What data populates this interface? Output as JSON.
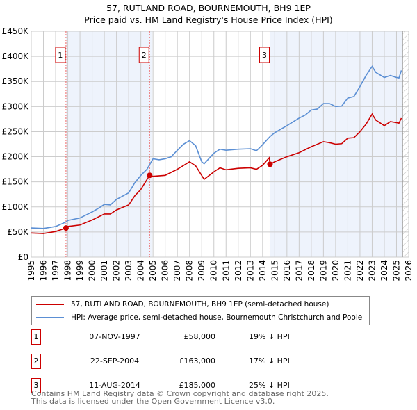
{
  "title": "57, RUTLAND ROAD, BOURNEMOUTH, BH9 1EP",
  "subtitle": "Price paid vs. HM Land Registry's House Price Index (HPI)",
  "chart_data": {
    "type": "line",
    "xlim": [
      1995,
      2026
    ],
    "ylim": [
      0,
      450000
    ],
    "yticks": [
      {
        "v": 0,
        "label": "£0"
      },
      {
        "v": 50000,
        "label": "£50K"
      },
      {
        "v": 100000,
        "label": "£100K"
      },
      {
        "v": 150000,
        "label": "£150K"
      },
      {
        "v": 200000,
        "label": "£200K"
      },
      {
        "v": 250000,
        "label": "£250K"
      },
      {
        "v": 300000,
        "label": "£300K"
      },
      {
        "v": 350000,
        "label": "£350K"
      },
      {
        "v": 400000,
        "label": "£400K"
      },
      {
        "v": 450000,
        "label": "£450K"
      }
    ],
    "xticks": [
      "1995",
      "1996",
      "1997",
      "1998",
      "1999",
      "2000",
      "2001",
      "2002",
      "2003",
      "2004",
      "2005",
      "2006",
      "2007",
      "2008",
      "2009",
      "2010",
      "2011",
      "2012",
      "2013",
      "2014",
      "2015",
      "2016",
      "2017",
      "2018",
      "2019",
      "2020",
      "2021",
      "2022",
      "2023",
      "2024",
      "2025",
      "2026"
    ],
    "grid": true,
    "shaded_ranges": [
      [
        1997.85,
        2004.95
      ],
      [
        2014.6,
        2025.5
      ]
    ],
    "forecast_hatch_from": 2025.5,
    "series": [
      {
        "name": "57, RUTLAND ROAD, BOURNEMOUTH, BH9 1EP (semi-detached house)",
        "color": "#cc0000",
        "x": [
          1995,
          1996,
          1997,
          1997.85,
          1998,
          1999,
          2000,
          2001,
          2001.5,
          2002,
          2003,
          2003.5,
          2004,
          2004.72,
          2005,
          2006,
          2007,
          2008,
          2008.5,
          2009.2,
          2010,
          2010.5,
          2011,
          2012,
          2013,
          2013.5,
          2014,
          2014.55,
          2014.62,
          2015,
          2016,
          2017,
          2018,
          2019,
          2019.5,
          2020,
          2020.5,
          2021,
          2021.5,
          2022,
          2022.5,
          2023,
          2023.3,
          2024,
          2024.5,
          2025,
          2025.2,
          2025.4
        ],
        "y": [
          48000,
          47000,
          51000,
          58000,
          61000,
          64000,
          74000,
          86000,
          86000,
          94000,
          104000,
          122000,
          135000,
          163000,
          161000,
          163000,
          175000,
          190000,
          182000,
          155000,
          170000,
          178000,
          174000,
          177000,
          178000,
          175000,
          183000,
          198000,
          185000,
          190000,
          200000,
          208000,
          220000,
          230000,
          228000,
          225000,
          226000,
          237000,
          238000,
          250000,
          265000,
          285000,
          273000,
          262000,
          270000,
          268000,
          267000,
          277000
        ]
      },
      {
        "name": "HPI: Average price, semi-detached house, Bournemouth Christchurch and Poole",
        "color": "#5b8fd4",
        "x": [
          1995,
          1996,
          1997,
          1997.85,
          1998,
          1999,
          2000,
          2000.5,
          2001,
          2001.5,
          2002,
          2003,
          2003.5,
          2004,
          2004.5,
          2005,
          2005.5,
          2006,
          2006.5,
          2007,
          2007.5,
          2008,
          2008.5,
          2009,
          2009.2,
          2010,
          2010.5,
          2011,
          2012,
          2013,
          2013.5,
          2014,
          2014.6,
          2015,
          2016,
          2017,
          2017.5,
          2018,
          2018.5,
          2019,
          2019.5,
          2020,
          2020.5,
          2021,
          2021.5,
          2022,
          2022.5,
          2023,
          2023.3,
          2024,
          2024.5,
          2025,
          2025.2,
          2025.4
        ],
        "y": [
          58000,
          57000,
          61000,
          70000,
          73000,
          78000,
          90000,
          97000,
          105000,
          104000,
          115000,
          128000,
          148000,
          163000,
          175000,
          196000,
          194000,
          196000,
          200000,
          213000,
          225000,
          232000,
          222000,
          190000,
          186000,
          207000,
          215000,
          213000,
          215000,
          216000,
          212000,
          224000,
          240000,
          248000,
          262000,
          277000,
          283000,
          293000,
          295000,
          306000,
          306000,
          300000,
          301000,
          317000,
          320000,
          340000,
          362000,
          380000,
          368000,
          358000,
          362000,
          358000,
          357000,
          372000
        ]
      }
    ],
    "sales": [
      {
        "n": "1",
        "x": 1997.85,
        "y": 58000,
        "date": "07-NOV-1997",
        "price": "£58,000",
        "hpi": "19% ↓ HPI"
      },
      {
        "n": "2",
        "x": 2004.72,
        "y": 163000,
        "date": "22-SEP-2004",
        "price": "£163,000",
        "hpi": "17% ↓ HPI"
      },
      {
        "n": "3",
        "x": 2014.61,
        "y": 185000,
        "date": "11-AUG-2014",
        "price": "£185,000",
        "hpi": "25% ↓ HPI"
      }
    ]
  },
  "legend": {
    "red": "57, RUTLAND ROAD, BOURNEMOUTH, BH9 1EP (semi-detached house)",
    "blue": "HPI: Average price, semi-detached house, Bournemouth Christchurch and Poole"
  },
  "footer": {
    "line1": "Contains HM Land Registry data © Crown copyright and database right 2025.",
    "line2": "This data is licensed under the Open Government Licence v3.0."
  }
}
